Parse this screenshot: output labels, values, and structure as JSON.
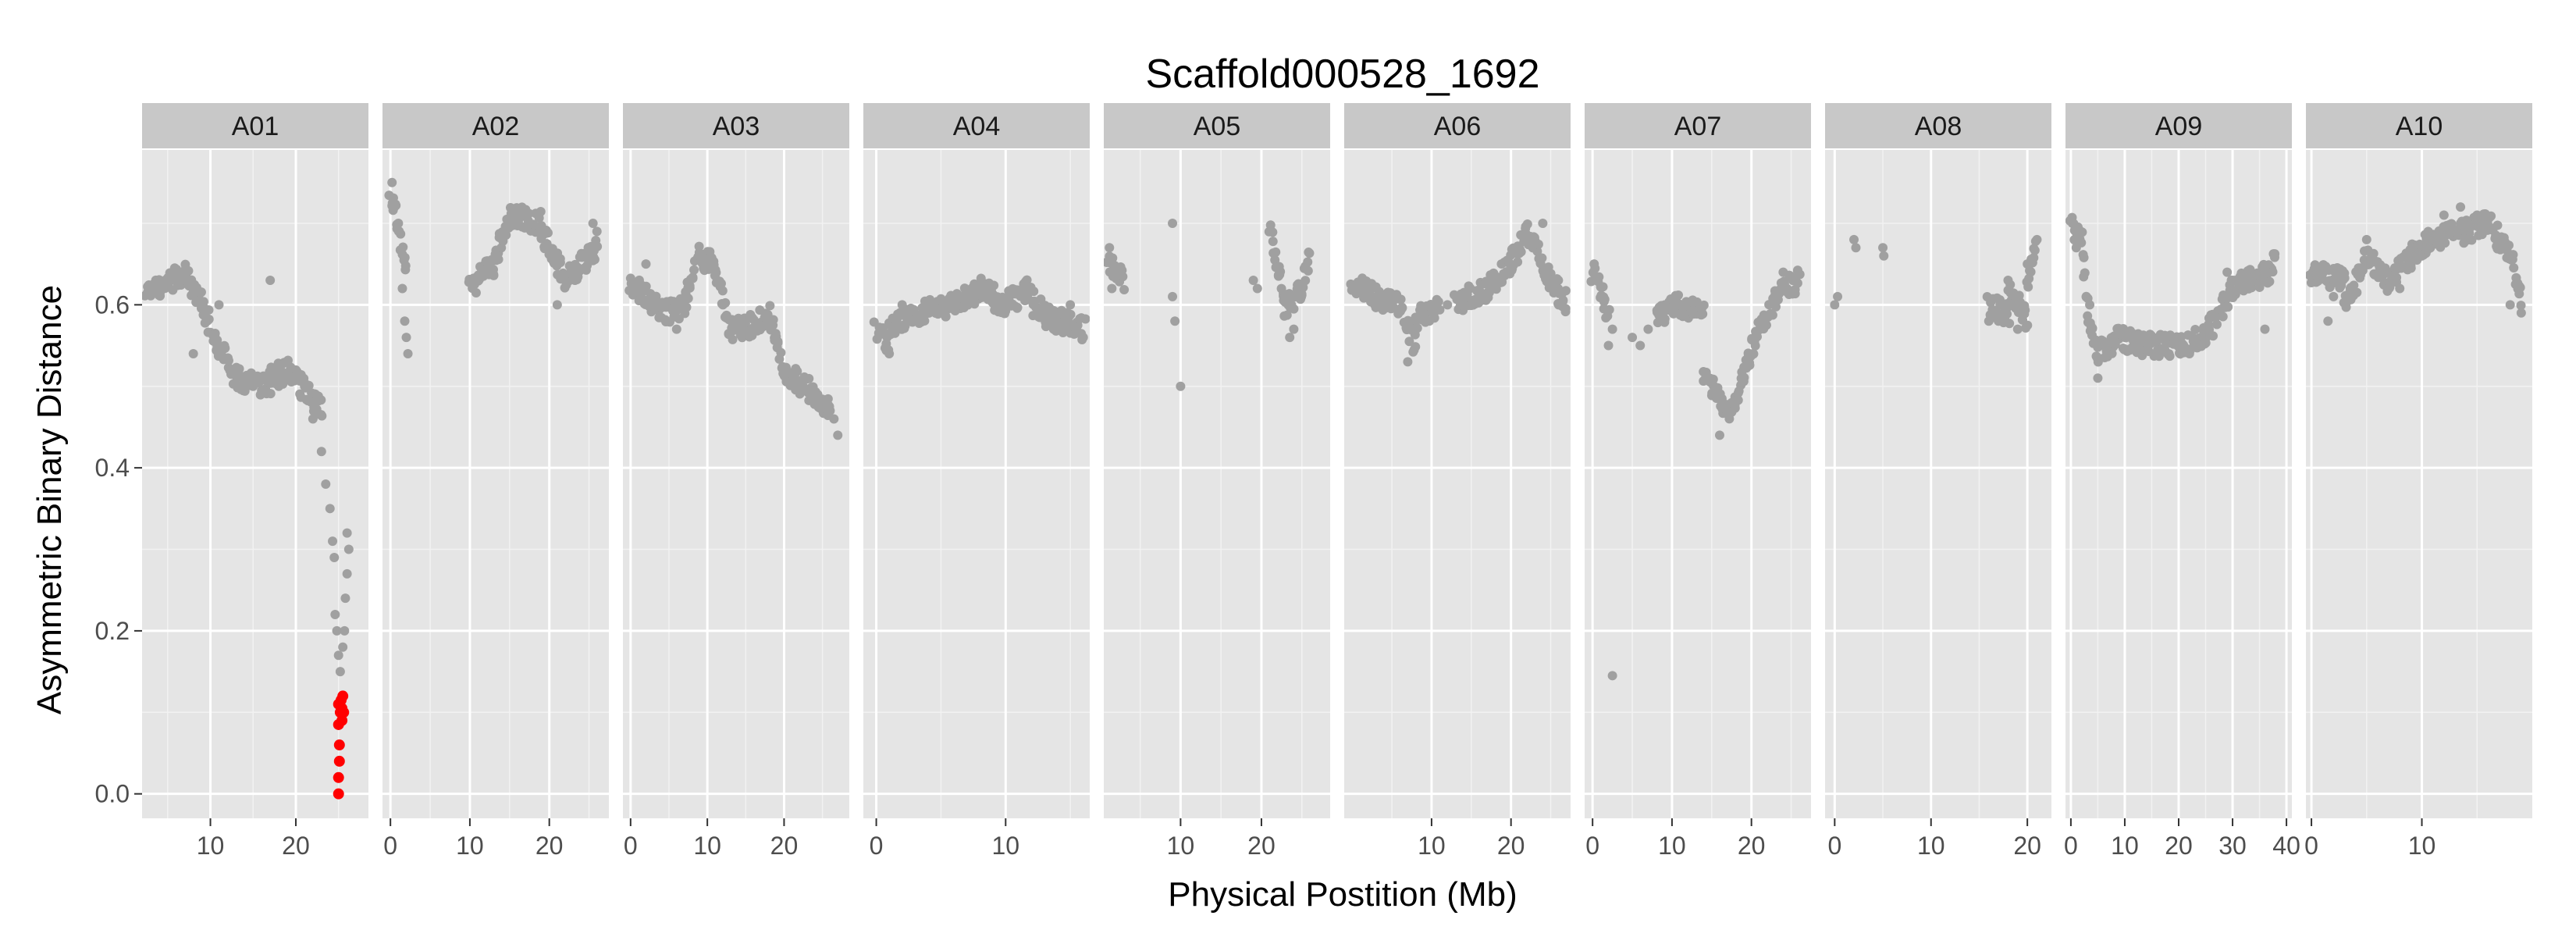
{
  "chart_data": {
    "type": "scatter",
    "title": "Scaffold000528_1692",
    "xlabel": "Physical Postition (Mb)",
    "ylabel": "Asymmetric Binary Distance",
    "ylim": [
      -0.03,
      0.79
    ],
    "y_ticks": [
      0.0,
      0.2,
      0.4,
      0.6
    ],
    "y_tick_labels": [
      "0.0",
      "0.2",
      "0.4",
      "0.6"
    ],
    "grid": true,
    "colors": {
      "panel_bg": "#e5e5e5",
      "strip_bg": "#c8c8c8",
      "grid_major": "#ffffff",
      "grid_minor": "#f2f2f2",
      "point": "#a0a0a0",
      "highlight": "#ff0000"
    },
    "panels": [
      {
        "name": "A01",
        "xlim": [
          2,
          28.5
        ],
        "x_ticks": [
          10,
          20
        ],
        "x_tick_labels": [
          "10",
          "20"
        ],
        "segments": [
          [
            2.5,
            0.61,
            7,
            0.64
          ],
          [
            7,
            0.64,
            9,
            0.6
          ],
          [
            9,
            0.6,
            11,
            0.55
          ],
          [
            11,
            0.55,
            13,
            0.51
          ],
          [
            13,
            0.51,
            17,
            0.5
          ],
          [
            17,
            0.51,
            19,
            0.52
          ],
          [
            19,
            0.52,
            23,
            0.47
          ]
        ],
        "points": [
          [
            8,
            0.54
          ],
          [
            11,
            0.6
          ],
          [
            17,
            0.63
          ],
          [
            15,
            0.5
          ],
          [
            16,
            0.51
          ],
          [
            18,
            0.5
          ],
          [
            20,
            0.52
          ],
          [
            22,
            0.46
          ],
          [
            23,
            0.42
          ],
          [
            23.5,
            0.38
          ],
          [
            24,
            0.35
          ],
          [
            24.3,
            0.31
          ],
          [
            24.5,
            0.29
          ],
          [
            24.6,
            0.22
          ],
          [
            24.8,
            0.2
          ],
          [
            25,
            0.17
          ],
          [
            25.2,
            0.15
          ],
          [
            26,
            0.32
          ],
          [
            26,
            0.27
          ],
          [
            25.8,
            0.24
          ],
          [
            25.7,
            0.2
          ],
          [
            25.5,
            0.18
          ],
          [
            26.2,
            0.3
          ]
        ],
        "highlight": [
          [
            25,
            0.0
          ],
          [
            25,
            0.02
          ],
          [
            25.1,
            0.04
          ],
          [
            25.1,
            0.06
          ],
          [
            25,
            0.085
          ],
          [
            25.2,
            0.1
          ],
          [
            25,
            0.11
          ],
          [
            25.3,
            0.115
          ],
          [
            25.4,
            0.105
          ],
          [
            25.6,
            0.1
          ],
          [
            25.5,
            0.12
          ],
          [
            25.4,
            0.09
          ]
        ]
      },
      {
        "name": "A02",
        "xlim": [
          -1,
          27.5
        ],
        "x_ticks": [
          0,
          10,
          20
        ],
        "x_tick_labels": [
          "0",
          "10",
          "20"
        ],
        "segments": [
          [
            0,
            0.74,
            2,
            0.65
          ],
          [
            10,
            0.62,
            13,
            0.65
          ],
          [
            13,
            0.65,
            15,
            0.71
          ],
          [
            15,
            0.71,
            19,
            0.7
          ],
          [
            19,
            0.69,
            22,
            0.63
          ],
          [
            22,
            0.63,
            26,
            0.67
          ]
        ],
        "points": [
          [
            0.2,
            0.75
          ],
          [
            0.5,
            0.72
          ],
          [
            1,
            0.7
          ],
          [
            1.5,
            0.62
          ],
          [
            1.8,
            0.58
          ],
          [
            2,
            0.56
          ],
          [
            2.2,
            0.54
          ],
          [
            17,
            0.71
          ],
          [
            21,
            0.6
          ],
          [
            26,
            0.69
          ],
          [
            25.5,
            0.7
          ]
        ],
        "highlight": []
      },
      {
        "name": "A03",
        "xlim": [
          -1,
          28.5
        ],
        "x_ticks": [
          0,
          10,
          20
        ],
        "x_tick_labels": [
          "0",
          "10",
          "20"
        ],
        "segments": [
          [
            0,
            0.63,
            3,
            0.6
          ],
          [
            3,
            0.6,
            5,
            0.59
          ],
          [
            5,
            0.59,
            7,
            0.6
          ],
          [
            7,
            0.6,
            9,
            0.66
          ],
          [
            9,
            0.66,
            11,
            0.65
          ],
          [
            11,
            0.64,
            13,
            0.57
          ],
          [
            13,
            0.57,
            15,
            0.57
          ],
          [
            15,
            0.57,
            18,
            0.59
          ],
          [
            18,
            0.59,
            20,
            0.52
          ],
          [
            20,
            0.52,
            24,
            0.49
          ],
          [
            24,
            0.49,
            26,
            0.47
          ]
        ],
        "points": [
          [
            26,
            0.47
          ],
          [
            27,
            0.44
          ],
          [
            26.5,
            0.46
          ],
          [
            2,
            0.65
          ],
          [
            6,
            0.57
          ]
        ],
        "highlight": []
      },
      {
        "name": "A04",
        "xlim": [
          -1,
          16.5
        ],
        "x_ticks": [
          0,
          10
        ],
        "x_tick_labels": [
          "0",
          "10"
        ],
        "segments": [
          [
            0,
            0.57,
            1,
            0.55
          ],
          [
            1,
            0.57,
            3,
            0.59
          ],
          [
            3,
            0.59,
            6,
            0.6
          ],
          [
            6,
            0.6,
            8,
            0.62
          ],
          [
            8,
            0.62,
            10,
            0.6
          ],
          [
            10,
            0.6,
            12,
            0.62
          ],
          [
            12,
            0.6,
            14,
            0.58
          ],
          [
            14,
            0.58,
            16,
            0.57
          ]
        ],
        "points": [
          [
            1,
            0.54
          ],
          [
            2,
            0.6
          ],
          [
            16,
            0.56
          ],
          [
            15,
            0.6
          ]
        ],
        "highlight": []
      },
      {
        "name": "A05",
        "xlim": [
          0.5,
          28.5
        ],
        "x_ticks": [
          10,
          20
        ],
        "x_tick_labels": [
          "10",
          "20"
        ],
        "segments": [
          [
            1,
            0.65,
            3,
            0.63
          ],
          [
            21,
            0.69,
            23,
            0.6
          ],
          [
            23,
            0.6,
            25,
            0.62
          ],
          [
            25,
            0.62,
            26,
            0.66
          ]
        ],
        "points": [
          [
            1.2,
            0.67
          ],
          [
            1.5,
            0.62
          ],
          [
            9,
            0.7
          ],
          [
            9,
            0.61
          ],
          [
            9.3,
            0.58
          ],
          [
            10,
            0.5
          ],
          [
            19,
            0.63
          ],
          [
            19.5,
            0.62
          ],
          [
            23.5,
            0.56
          ],
          [
            24,
            0.57
          ]
        ],
        "highlight": []
      },
      {
        "name": "A06",
        "xlim": [
          -1,
          27.5
        ],
        "x_ticks": [
          10,
          20
        ],
        "x_tick_labels": [
          "10",
          "20"
        ],
        "segments": [
          [
            0,
            0.63,
            3,
            0.61
          ],
          [
            3,
            0.61,
            6,
            0.6
          ],
          [
            6,
            0.6,
            8,
            0.55
          ],
          [
            8,
            0.58,
            11,
            0.6
          ],
          [
            13,
            0.6,
            17,
            0.62
          ],
          [
            17,
            0.62,
            20,
            0.65
          ],
          [
            20,
            0.65,
            22,
            0.69
          ],
          [
            22,
            0.69,
            25,
            0.63
          ],
          [
            25,
            0.63,
            27,
            0.6
          ]
        ],
        "points": [
          [
            7,
            0.53
          ],
          [
            12,
            0.6
          ],
          [
            24,
            0.7
          ],
          [
            26,
            0.6
          ]
        ],
        "highlight": []
      },
      {
        "name": "A07",
        "xlim": [
          -1,
          27.5
        ],
        "x_ticks": [
          0,
          10,
          20
        ],
        "x_tick_labels": [
          "0",
          "10",
          "20"
        ],
        "segments": [
          [
            0,
            0.64,
            2,
            0.59
          ],
          [
            8,
            0.58,
            10,
            0.6
          ],
          [
            10,
            0.6,
            14,
            0.59
          ],
          [
            14,
            0.52,
            17,
            0.46
          ],
          [
            17,
            0.46,
            19,
            0.52
          ],
          [
            19,
            0.52,
            21,
            0.57
          ],
          [
            21,
            0.57,
            24,
            0.62
          ],
          [
            24,
            0.62,
            26,
            0.63
          ]
        ],
        "points": [
          [
            0.2,
            0.65
          ],
          [
            2,
            0.55
          ],
          [
            2.5,
            0.57
          ],
          [
            2.5,
            0.145
          ],
          [
            5,
            0.56
          ],
          [
            6,
            0.55
          ],
          [
            7,
            0.57
          ],
          [
            16,
            0.44
          ],
          [
            24,
            0.64
          ]
        ],
        "highlight": []
      },
      {
        "name": "A08",
        "xlim": [
          -1,
          22.5
        ],
        "x_ticks": [
          0,
          10,
          20
        ],
        "x_tick_labels": [
          "0",
          "10",
          "20"
        ],
        "segments": [
          [
            16,
            0.6,
            18,
            0.59
          ],
          [
            18,
            0.62,
            20,
            0.58
          ],
          [
            20,
            0.62,
            21,
            0.67
          ]
        ],
        "points": [
          [
            0,
            0.6
          ],
          [
            0.3,
            0.61
          ],
          [
            2,
            0.68
          ],
          [
            2.2,
            0.67
          ],
          [
            5,
            0.67
          ],
          [
            5.1,
            0.66
          ],
          [
            16,
            0.58
          ],
          [
            17,
            0.58
          ],
          [
            18,
            0.63
          ],
          [
            19,
            0.57
          ],
          [
            20,
            0.65
          ],
          [
            21,
            0.68
          ]
        ],
        "highlight": []
      },
      {
        "name": "A09",
        "xlim": [
          -1,
          41
        ],
        "x_ticks": [
          0,
          10,
          20,
          30,
          40
        ],
        "x_tick_labels": [
          "0",
          "10",
          "20",
          "30",
          "40"
        ],
        "segments": [
          [
            0,
            0.7,
            2,
            0.68
          ],
          [
            2,
            0.68,
            3,
            0.6
          ],
          [
            3,
            0.6,
            5,
            0.54
          ],
          [
            5,
            0.54,
            9,
            0.56
          ],
          [
            9,
            0.56,
            13,
            0.55
          ],
          [
            13,
            0.55,
            17,
            0.55
          ],
          [
            17,
            0.55,
            20,
            0.55
          ],
          [
            20,
            0.55,
            25,
            0.56
          ],
          [
            25,
            0.56,
            30,
            0.62
          ],
          [
            30,
            0.62,
            33,
            0.63
          ],
          [
            33,
            0.63,
            37,
            0.64
          ],
          [
            37,
            0.64,
            38,
            0.66
          ]
        ],
        "points": [
          [
            0.3,
            0.7
          ],
          [
            1,
            0.67
          ],
          [
            5,
            0.51
          ],
          [
            3.5,
            0.6
          ],
          [
            22,
            0.54
          ],
          [
            29,
            0.64
          ],
          [
            30,
            0.63
          ],
          [
            36,
            0.57
          ]
        ],
        "highlight": []
      },
      {
        "name": "A10",
        "xlim": [
          -0.5,
          20
        ],
        "x_ticks": [
          0,
          10
        ],
        "x_tick_labels": [
          "0",
          "10"
        ],
        "segments": [
          [
            0,
            0.64,
            3,
            0.63
          ],
          [
            3,
            0.6,
            5,
            0.66
          ],
          [
            5,
            0.66,
            7,
            0.63
          ],
          [
            7,
            0.63,
            9,
            0.66
          ],
          [
            9,
            0.66,
            11,
            0.68
          ],
          [
            11,
            0.68,
            14,
            0.69
          ],
          [
            14,
            0.69,
            16,
            0.7
          ],
          [
            16,
            0.7,
            18,
            0.66
          ],
          [
            18,
            0.66,
            19,
            0.61
          ]
        ],
        "points": [
          [
            1.5,
            0.58
          ],
          [
            2,
            0.61
          ],
          [
            5,
            0.68
          ],
          [
            8,
            0.62
          ],
          [
            12,
            0.71
          ],
          [
            13.5,
            0.72
          ],
          [
            15,
            0.71
          ],
          [
            18,
            0.6
          ],
          [
            19,
            0.59
          ]
        ],
        "highlight": []
      }
    ]
  }
}
